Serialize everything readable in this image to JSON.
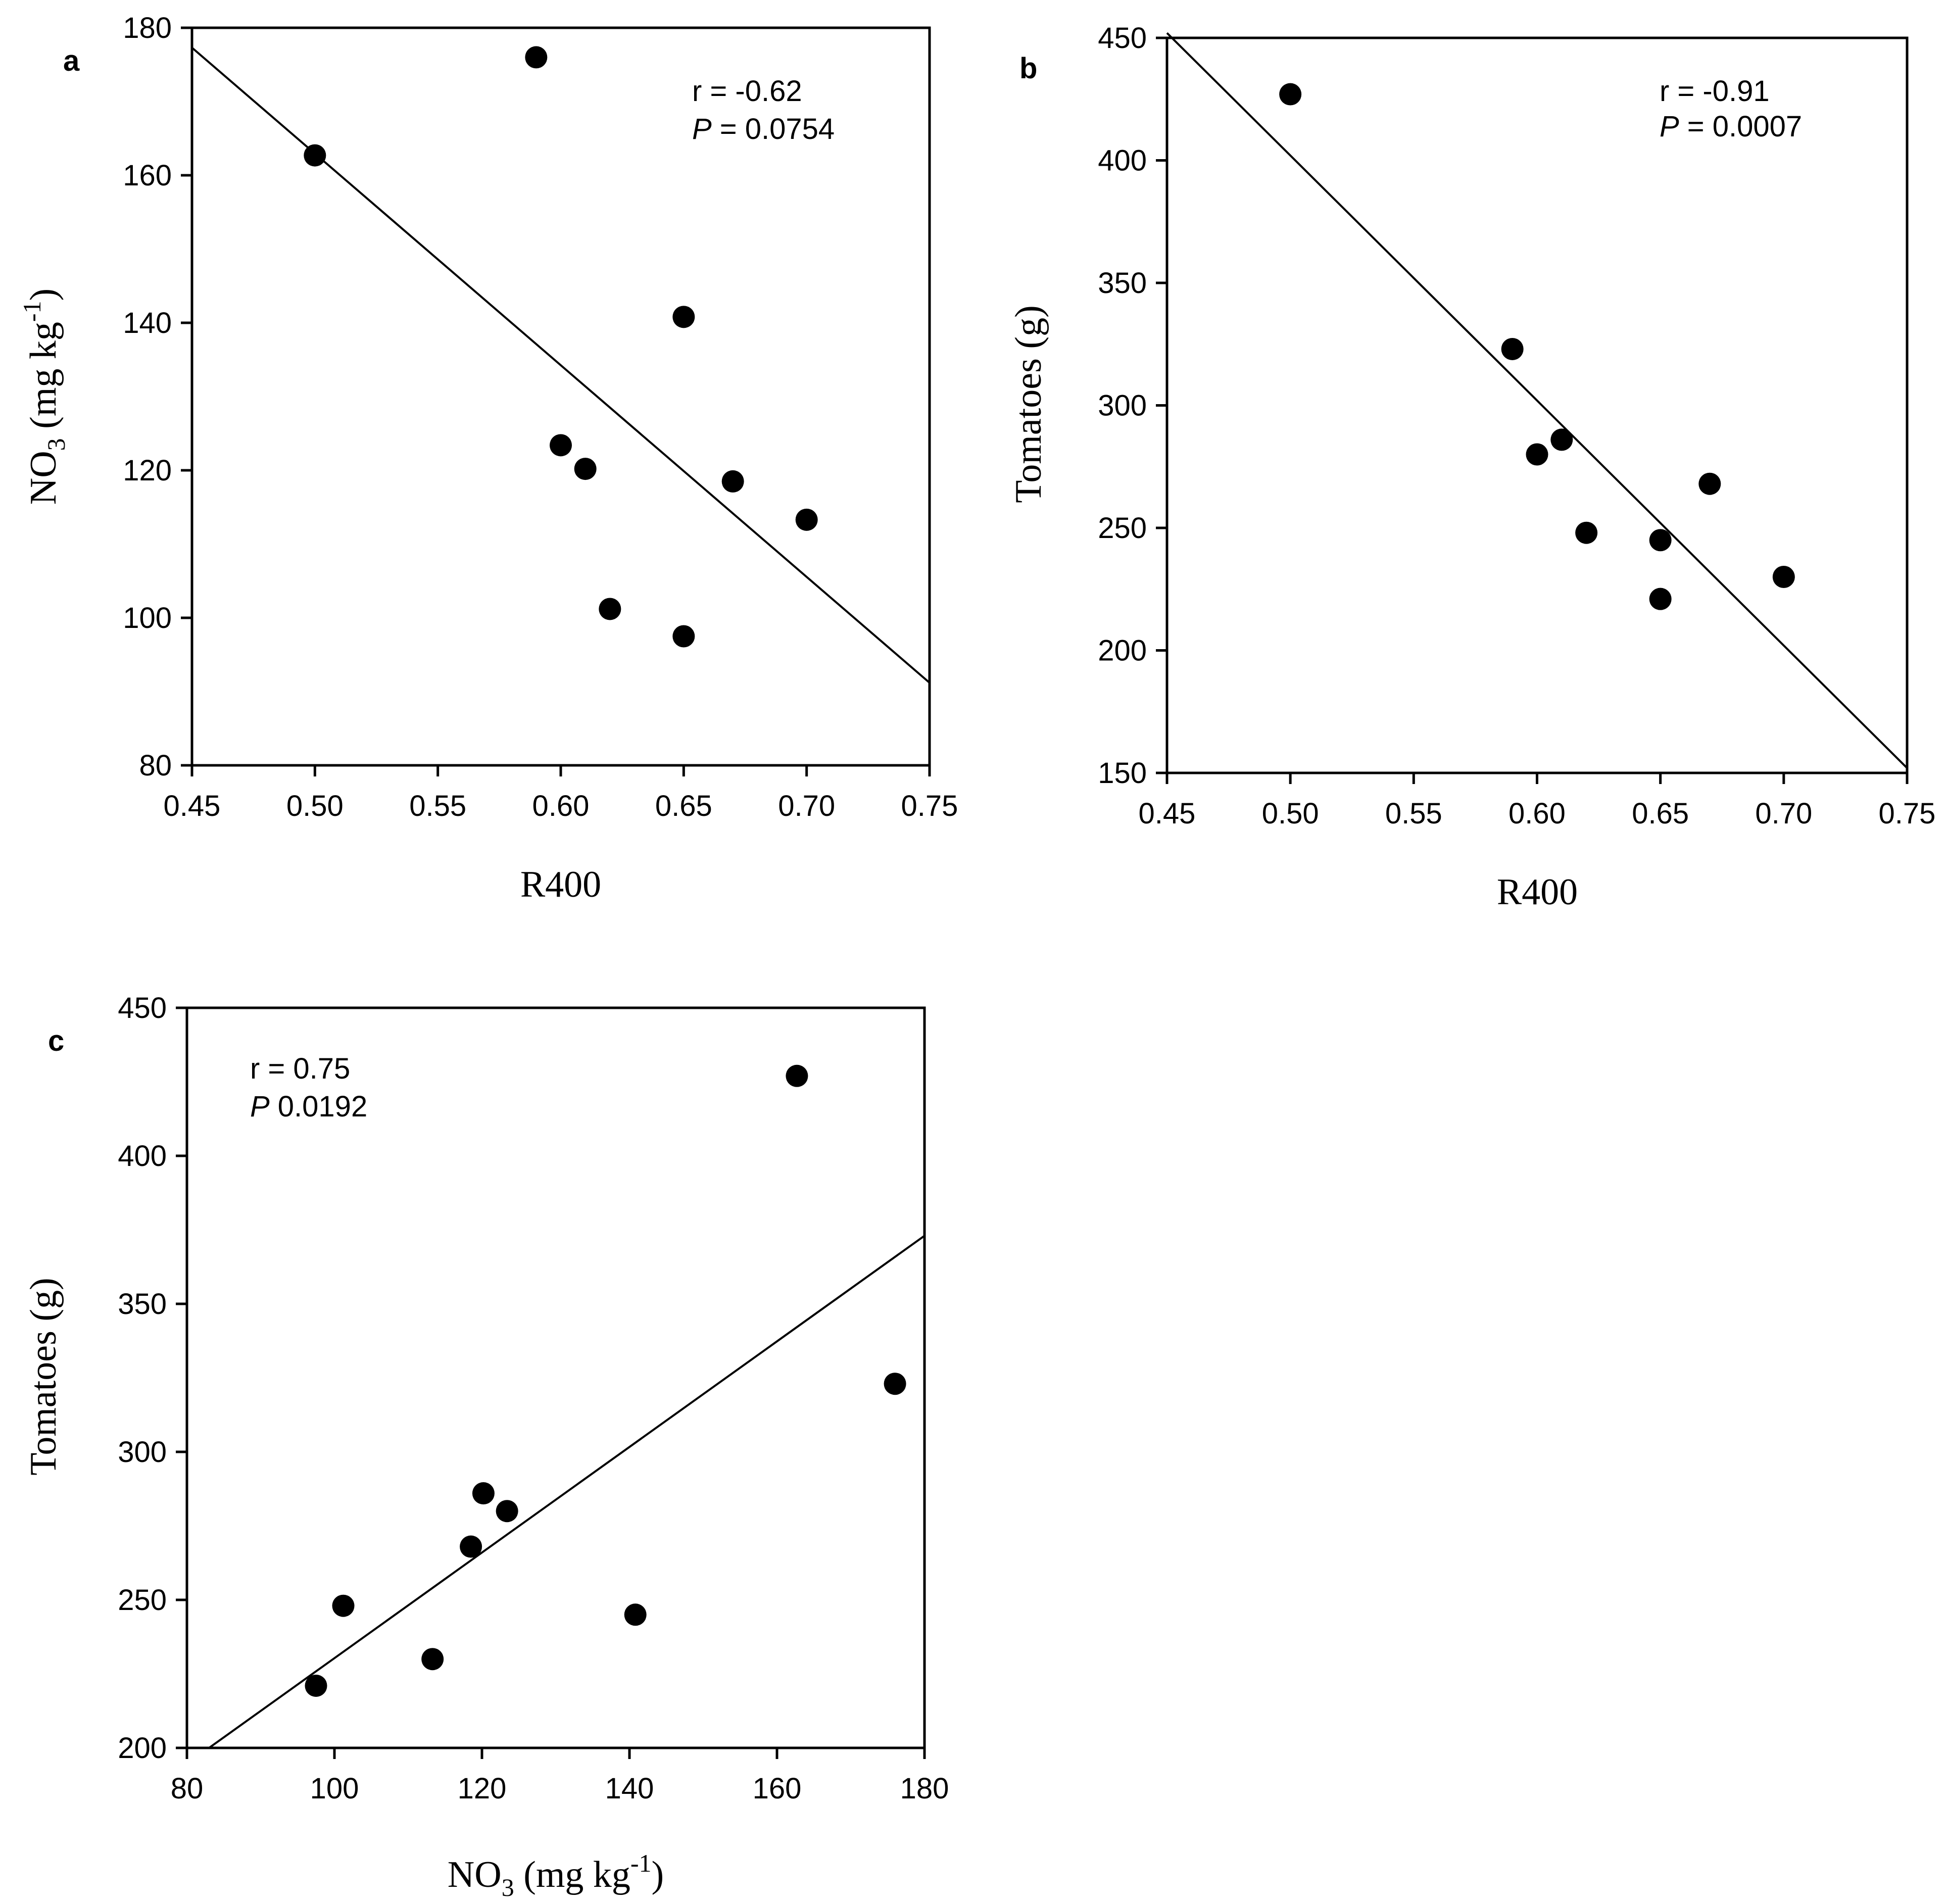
{
  "chart_data": [
    {
      "id": "a",
      "type": "scatter",
      "panel_label": "a",
      "xlabel": "R400",
      "ylabel": {
        "base": "NO",
        "sub": "3",
        "unit": " (mg kg",
        "sup": "-1",
        "close": ")"
      },
      "xlim": [
        0.45,
        0.75
      ],
      "ylim": [
        80,
        180
      ],
      "xticks": [
        0.45,
        0.5,
        0.55,
        0.6,
        0.65,
        0.7,
        0.75
      ],
      "xtick_labels": [
        "0.45",
        "0.50",
        "0.55",
        "0.60",
        "0.65",
        "0.70",
        "0.75"
      ],
      "yticks": [
        80,
        100,
        120,
        140,
        160,
        180
      ],
      "ytick_labels": [
        "80",
        "100",
        "120",
        "140",
        "160",
        "180"
      ],
      "points": [
        {
          "x": 0.5,
          "y": 162.7
        },
        {
          "x": 0.59,
          "y": 176.0
        },
        {
          "x": 0.6,
          "y": 123.4
        },
        {
          "x": 0.61,
          "y": 120.2
        },
        {
          "x": 0.62,
          "y": 101.2
        },
        {
          "x": 0.65,
          "y": 140.8
        },
        {
          "x": 0.65,
          "y": 97.5
        },
        {
          "x": 0.67,
          "y": 118.5
        },
        {
          "x": 0.7,
          "y": 113.3
        }
      ],
      "fit_line": {
        "x": [
          0.45,
          0.75
        ],
        "y": [
          177.3,
          91.2
        ]
      },
      "stats": {
        "r_text": "r = -0.62",
        "p_symbol": "P",
        "p_rest": " = 0.0754"
      }
    },
    {
      "id": "b",
      "type": "scatter",
      "panel_label": "b",
      "xlabel": "R400",
      "ylabel": {
        "base": "Tomatoes (g)"
      },
      "xlim": [
        0.45,
        0.75
      ],
      "ylim": [
        150,
        450
      ],
      "xticks": [
        0.45,
        0.5,
        0.55,
        0.6,
        0.65,
        0.7,
        0.75
      ],
      "xtick_labels": [
        "0.45",
        "0.50",
        "0.55",
        "0.60",
        "0.65",
        "0.70",
        "0.75"
      ],
      "yticks": [
        150,
        200,
        250,
        300,
        350,
        400,
        450
      ],
      "ytick_labels": [
        "150",
        "200",
        "250",
        "300",
        "350",
        "400",
        "450"
      ],
      "points": [
        {
          "x": 0.5,
          "y": 427
        },
        {
          "x": 0.59,
          "y": 323
        },
        {
          "x": 0.6,
          "y": 280
        },
        {
          "x": 0.61,
          "y": 286
        },
        {
          "x": 0.62,
          "y": 248
        },
        {
          "x": 0.65,
          "y": 245
        },
        {
          "x": 0.65,
          "y": 221
        },
        {
          "x": 0.67,
          "y": 268
        },
        {
          "x": 0.7,
          "y": 230
        }
      ],
      "fit_line": {
        "x": [
          0.45,
          0.75
        ],
        "y": [
          452,
          152
        ]
      },
      "stats": {
        "r_text": "r = -0.91",
        "p_symbol": "P",
        "p_rest": " = 0.0007"
      }
    },
    {
      "id": "c",
      "type": "scatter",
      "panel_label": "c",
      "xlabel": {
        "base": "NO",
        "sub": "3",
        "unit": " (mg kg",
        "sup": "-1",
        "close": ")"
      },
      "ylabel": {
        "base": "Tomatoes (g)"
      },
      "xlim": [
        80,
        180
      ],
      "ylim": [
        200,
        450
      ],
      "xticks": [
        80,
        100,
        120,
        140,
        160,
        180
      ],
      "xtick_labels": [
        "80",
        "100",
        "120",
        "140",
        "160",
        "180"
      ],
      "yticks": [
        200,
        250,
        300,
        350,
        400,
        450
      ],
      "ytick_labels": [
        "200",
        "250",
        "300",
        "350",
        "400",
        "450"
      ],
      "points": [
        {
          "x": 162.7,
          "y": 427
        },
        {
          "x": 176.0,
          "y": 323
        },
        {
          "x": 123.4,
          "y": 280
        },
        {
          "x": 120.2,
          "y": 286
        },
        {
          "x": 101.2,
          "y": 248
        },
        {
          "x": 140.8,
          "y": 245
        },
        {
          "x": 97.5,
          "y": 221
        },
        {
          "x": 118.5,
          "y": 268
        },
        {
          "x": 113.3,
          "y": 230
        }
      ],
      "fit_line": {
        "x": [
          83,
          180
        ],
        "y": [
          200,
          373
        ]
      },
      "stats": {
        "r_text": "r = 0.75",
        "p_symbol": "P",
        "p_rest": " 0.0192"
      }
    }
  ]
}
